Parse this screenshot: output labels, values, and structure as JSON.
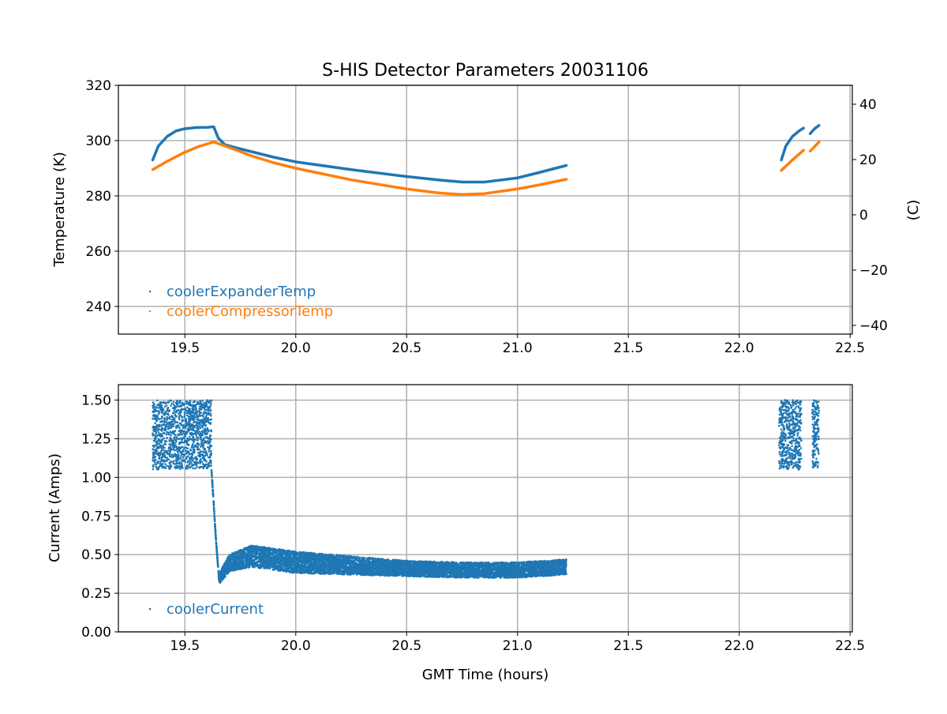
{
  "chart_data": [
    {
      "type": "scatter",
      "title": "S-HIS Detector Parameters 20031106",
      "xlabel": "",
      "ylabel": "Temperature (K)",
      "ylabel_right": "(C)",
      "xlim": [
        19.2,
        22.51
      ],
      "ylim": [
        230,
        320
      ],
      "ylim_right_offset_K_to_C": -273.15,
      "xticks": [
        "19.5",
        "20.0",
        "20.5",
        "21.0",
        "21.5",
        "22.0",
        "22.5"
      ],
      "yticks": [
        "240",
        "260",
        "280",
        "300",
        "320"
      ],
      "yticks_right": [
        "−40",
        "−20",
        "0",
        "20",
        "40"
      ],
      "grid": true,
      "legend": "lower-left",
      "series": [
        {
          "name": "coolerExpanderTemp",
          "color": "#1f77b4",
          "segments": [
            {
              "x": [
                19.355,
                19.38,
                19.42,
                19.46,
                19.5,
                19.55,
                19.6,
                19.63,
                19.65,
                19.68,
                19.75,
                19.9,
                20.0,
                20.25,
                20.5,
                20.65,
                20.75,
                20.85,
                21.0,
                21.1,
                21.22
              ],
              "y": [
                293,
                298,
                301.5,
                303.5,
                304.3,
                304.7,
                304.8,
                305,
                301,
                298.5,
                297,
                294,
                292.3,
                289.5,
                287,
                285.7,
                285,
                285,
                286.5,
                288.5,
                291
              ]
            },
            {
              "x": [
                22.19,
                22.21,
                22.24,
                22.27,
                22.29
              ],
              "y": [
                293,
                298,
                301.5,
                303.5,
                304.5
              ]
            },
            {
              "x": [
                22.32,
                22.34,
                22.36
              ],
              "y": [
                302.5,
                304.3,
                305.5
              ]
            }
          ]
        },
        {
          "name": "coolerCompressorTemp",
          "color": "#ff7f0e",
          "segments": [
            {
              "x": [
                19.355,
                19.42,
                19.5,
                19.56,
                19.63,
                19.7,
                19.8,
                19.9,
                20.0,
                20.25,
                20.5,
                20.65,
                20.75,
                20.85,
                21.0,
                21.1,
                21.22
              ],
              "y": [
                289.5,
                292.5,
                295.8,
                297.8,
                299.5,
                297.5,
                294.5,
                292,
                290,
                285.8,
                282.5,
                281,
                280.5,
                280.8,
                282.5,
                284,
                286
              ]
            },
            {
              "x": [
                22.19,
                22.24,
                22.29
              ],
              "y": [
                289.2,
                293,
                296.5
              ]
            },
            {
              "x": [
                22.32,
                22.36
              ],
              "y": [
                296.2,
                299.5
              ]
            }
          ]
        }
      ]
    },
    {
      "type": "scatter",
      "title": "",
      "xlabel": "GMT Time (hours)",
      "ylabel": "Current (Amps)",
      "xlim": [
        19.2,
        22.51
      ],
      "ylim": [
        0,
        1.6
      ],
      "xticks": [
        "19.5",
        "20.0",
        "20.5",
        "21.0",
        "21.5",
        "22.0",
        "22.5"
      ],
      "yticks": [
        "0.00",
        "0.25",
        "0.50",
        "0.75",
        "1.00",
        "1.25",
        "1.50"
      ],
      "grid": true,
      "legend": "lower-left",
      "series": [
        {
          "name": "coolerCurrent",
          "color": "#1f77b4",
          "bands": [
            {
              "x": [
                19.355,
                19.62
              ],
              "ymin": [
                1.05,
                1.06
              ],
              "ymax": [
                1.5,
                1.5
              ]
            },
            {
              "x": [
                19.62,
                19.64,
                19.655
              ],
              "ymin": [
                1.05,
                0.6,
                0.32
              ],
              "ymax": [
                1.05,
                0.6,
                0.32
              ]
            },
            {
              "x": [
                19.655,
                19.7,
                19.8,
                20.0,
                20.25,
                20.5,
                20.75,
                21.0,
                21.22
              ],
              "ymin": [
                0.31,
                0.39,
                0.42,
                0.38,
                0.37,
                0.36,
                0.35,
                0.35,
                0.37
              ],
              "ymax": [
                0.38,
                0.5,
                0.56,
                0.52,
                0.49,
                0.46,
                0.45,
                0.45,
                0.47
              ]
            },
            {
              "x": [
                22.18,
                22.28
              ],
              "ymin": [
                1.05,
                1.05
              ],
              "ymax": [
                1.5,
                1.5
              ]
            },
            {
              "x": [
                22.33,
                22.36
              ],
              "ymin": [
                1.06,
                1.06
              ],
              "ymax": [
                1.5,
                1.5
              ]
            }
          ]
        }
      ]
    }
  ]
}
